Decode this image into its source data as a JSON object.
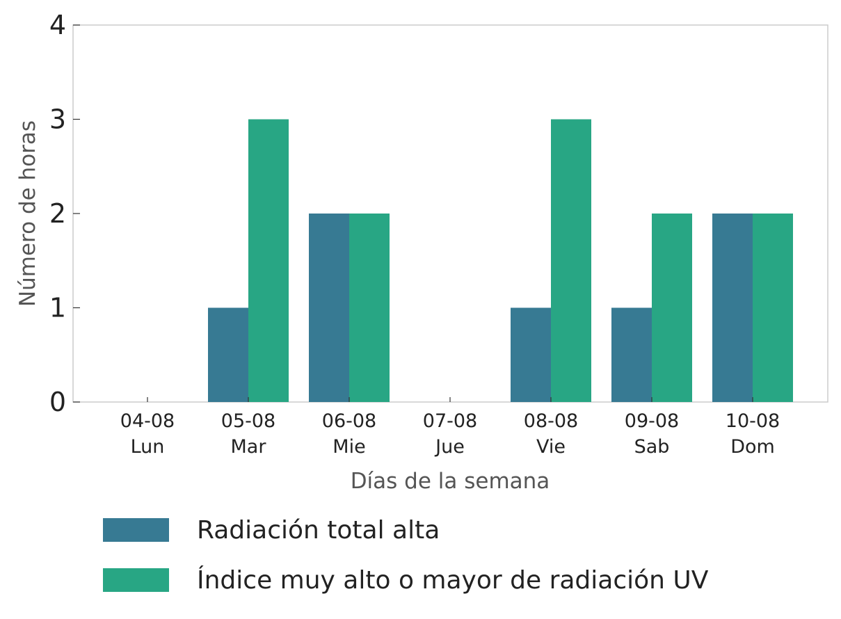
{
  "chart_data": {
    "type": "bar",
    "categories": [
      "04-08\nLun",
      "05-08\nMar",
      "06-08\nMie",
      "07-08\nJue",
      "08-08\nVie",
      "09-08\nSab",
      "10-08\nDom"
    ],
    "category_dates": [
      "04-08",
      "05-08",
      "06-08",
      "07-08",
      "08-08",
      "09-08",
      "10-08"
    ],
    "category_days": [
      "Lun",
      "Mar",
      "Mie",
      "Jue",
      "Vie",
      "Sab",
      "Dom"
    ],
    "series": [
      {
        "name": "Radiación total alta",
        "values": [
          0,
          1,
          2,
          0,
          1,
          1,
          2
        ],
        "color": "#377a93"
      },
      {
        "name": "Índice muy alto o mayor de radiación UV",
        "values": [
          0,
          3,
          2,
          0,
          3,
          2,
          2
        ],
        "color": "#28a684"
      }
    ],
    "title": "",
    "xlabel": "Días de la semana",
    "ylabel": "Número de horas",
    "ylim": [
      0,
      4
    ],
    "yticks": [
      "0",
      "1",
      "2",
      "3",
      "4"
    ],
    "grid": false,
    "legend_position": "bottom"
  }
}
